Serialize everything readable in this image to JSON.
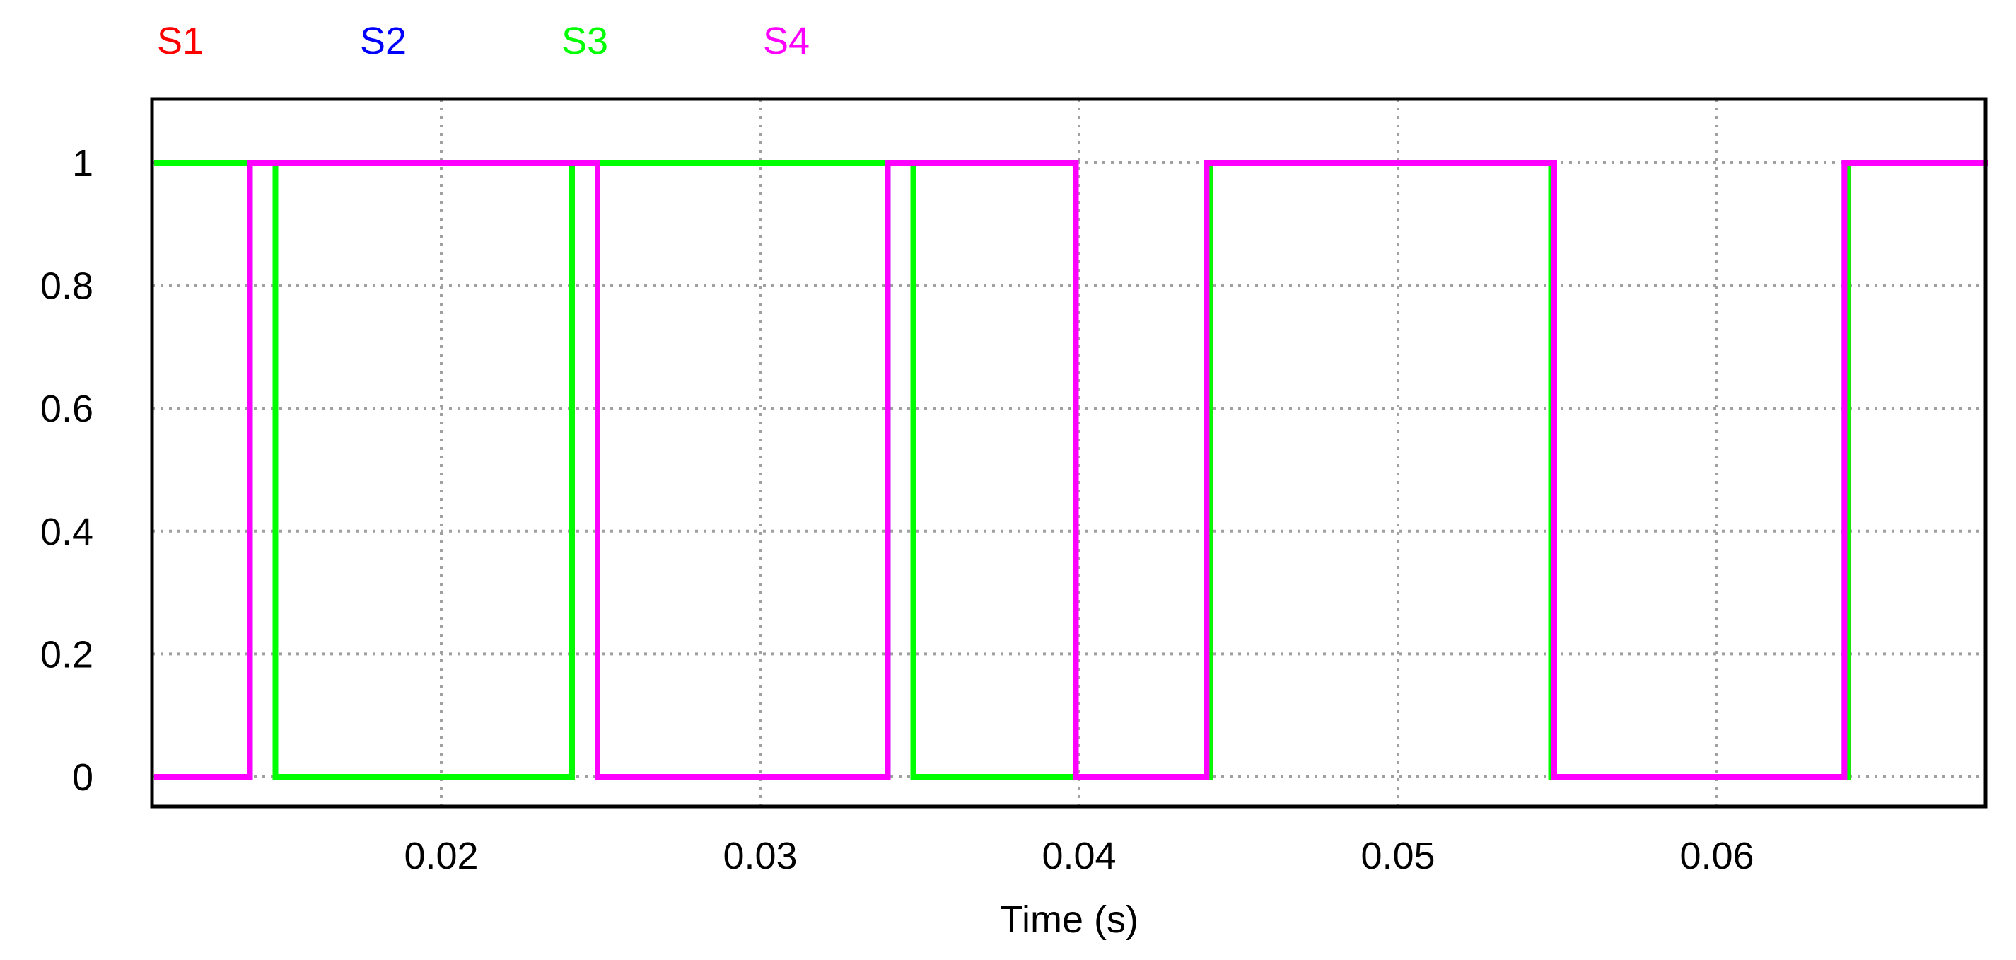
{
  "chart_data": {
    "type": "line",
    "title": "",
    "xlabel": "Time (s)",
    "ylabel": "",
    "xlim": [
      0.011,
      0.0685
    ],
    "ylim": [
      -0.05,
      1.1
    ],
    "xticks": [
      0.02,
      0.03,
      0.04,
      0.05,
      0.06
    ],
    "xtick_labels": [
      "0.02",
      "0.03",
      "0.04",
      "0.05",
      "0.06"
    ],
    "yticks": [
      0,
      0.2,
      0.4,
      0.6,
      0.8,
      1
    ],
    "ytick_labels": [
      "0",
      "0.2",
      "0.4",
      "0.6",
      "0.8",
      "1"
    ],
    "grid": true,
    "legend_position": "top-left",
    "series": [
      {
        "name": "S1",
        "color": "#ff0000",
        "hidden_behind": "S3",
        "x": [
          0.011,
          0.0148,
          0.0148,
          0.0241,
          0.0241,
          0.0348,
          0.0348,
          0.0441,
          0.0441,
          0.0548,
          0.0548,
          0.0641,
          0.0641,
          0.0685
        ],
        "y": [
          1,
          1,
          0,
          0,
          1,
          1,
          0,
          0,
          1,
          1,
          0,
          0,
          1,
          1
        ]
      },
      {
        "name": "S2",
        "color": "#0000ff",
        "hidden_behind": "S4",
        "x": [
          0.011,
          0.014,
          0.014,
          0.0249,
          0.0249,
          0.034,
          0.034,
          0.0399,
          0.0399,
          0.044,
          0.044,
          0.0549,
          0.0549,
          0.064,
          0.064,
          0.0685
        ],
        "y": [
          0,
          0,
          1,
          1,
          0,
          0,
          1,
          1,
          0,
          0,
          1,
          1,
          0,
          0,
          1,
          1
        ]
      },
      {
        "name": "S3",
        "color": "#00ff00",
        "x": [
          0.011,
          0.0148,
          0.0148,
          0.0241,
          0.0241,
          0.0348,
          0.0348,
          0.0441,
          0.0441,
          0.0548,
          0.0548,
          0.0641,
          0.0641,
          0.0685
        ],
        "y": [
          1,
          1,
          0,
          0,
          1,
          1,
          0,
          0,
          1,
          1,
          0,
          0,
          1,
          1
        ]
      },
      {
        "name": "S4",
        "color": "#ff00ff",
        "x": [
          0.011,
          0.014,
          0.014,
          0.0249,
          0.0249,
          0.034,
          0.034,
          0.0399,
          0.0399,
          0.044,
          0.044,
          0.0549,
          0.0549,
          0.064,
          0.064,
          0.0685
        ],
        "y": [
          0,
          0,
          1,
          1,
          0,
          0,
          1,
          1,
          0,
          0,
          1,
          1,
          0,
          0,
          1,
          1
        ]
      }
    ]
  }
}
